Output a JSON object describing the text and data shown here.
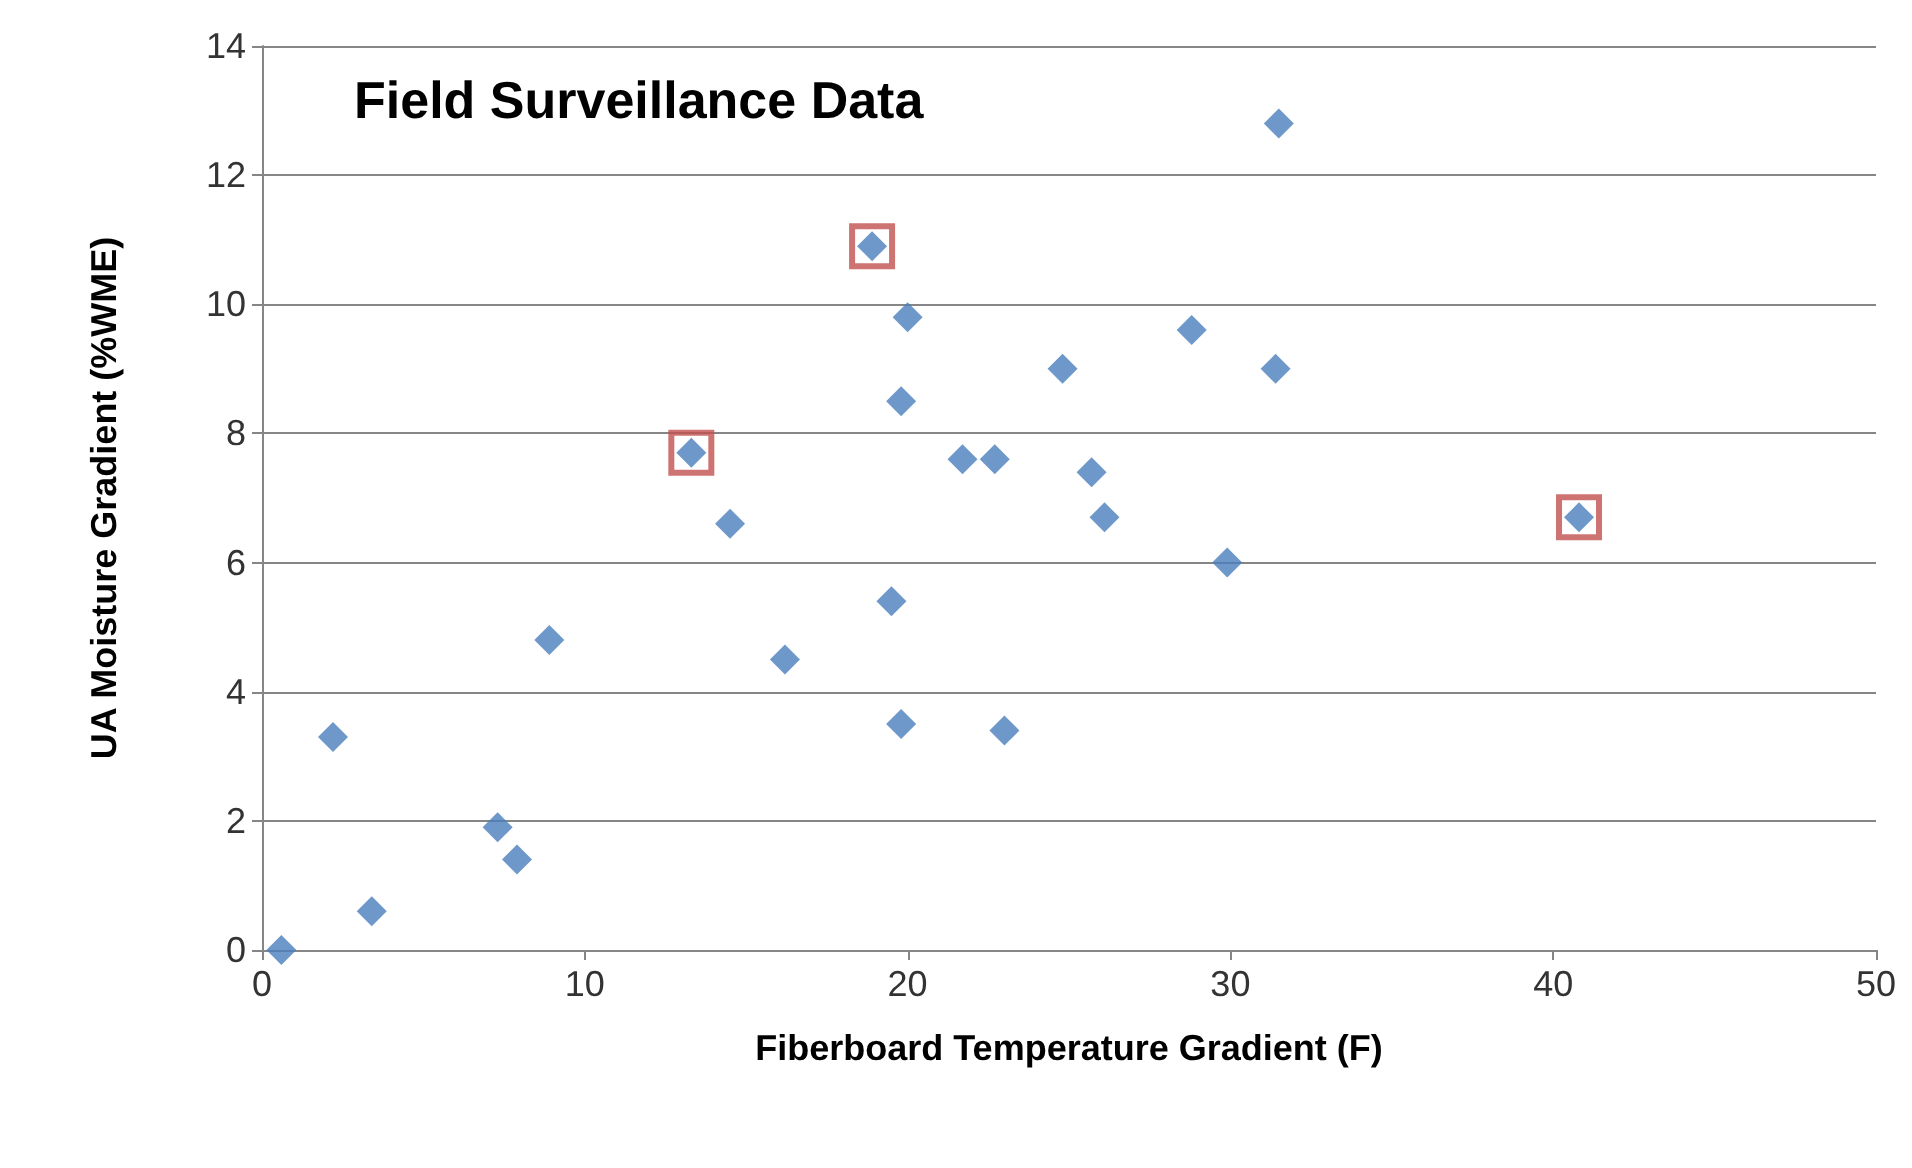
{
  "chart_data": {
    "type": "scatter",
    "title": "Field Surveillance Data",
    "xlabel": "Fiberboard Temperature Gradient (F)",
    "ylabel": "UA Moisture Gradient (%WME)",
    "xlim": [
      0,
      50
    ],
    "xticks": [
      0,
      10,
      20,
      30,
      40,
      50
    ],
    "ylim": [
      0,
      14
    ],
    "yticks": [
      0,
      2,
      4,
      6,
      8,
      10,
      12,
      14
    ],
    "grid": "y",
    "series": [
      {
        "color": "#4a7ebb",
        "marker": "diamond",
        "x": [
          0.6,
          2.2,
          3.4,
          7.3,
          7.9,
          8.9,
          13.3,
          14.5,
          16.2,
          18.9,
          19.5,
          20.0,
          19.8,
          19.8,
          21.7,
          22.7,
          23.0,
          24.8,
          25.7,
          26.1,
          28.8,
          29.9,
          31.4,
          31.5,
          40.8
        ],
        "values": [
          0,
          3.3,
          0.6,
          1.9,
          1.4,
          4.8,
          7.7,
          6.6,
          4.5,
          10.9,
          5.4,
          9.8,
          8.5,
          3.5,
          7.6,
          7.6,
          3.4,
          9.0,
          7.4,
          6.7,
          9.6,
          6.0,
          9.0,
          12.8,
          6.7
        ]
      },
      {
        "color": "#c0504d",
        "marker": "square",
        "x": [
          13.3,
          18.9,
          40.8
        ],
        "values": [
          7.7,
          10.9,
          6.7
        ]
      }
    ]
  }
}
